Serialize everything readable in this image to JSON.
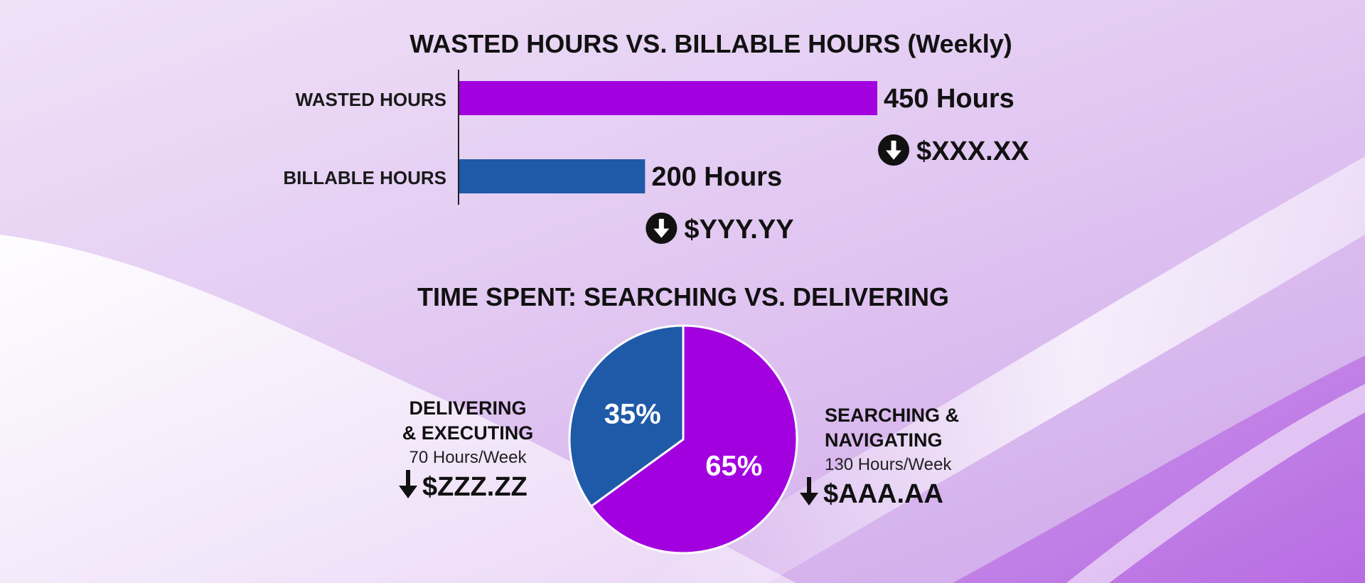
{
  "colors": {
    "wasted": "#a300e0",
    "billable": "#1f5aa8",
    "pie_searching": "#a300e0",
    "pie_delivering": "#1f5aa8",
    "text": "#111111"
  },
  "chart_data": [
    {
      "type": "bar",
      "orientation": "horizontal",
      "title": "WASTED HOURS VS. BILLABLE HOURS (Weekly)",
      "categories": [
        "WASTED HOURS",
        "BILLABLE HOURS"
      ],
      "values": [
        450,
        200
      ],
      "value_labels": [
        "450 Hours",
        "200 Hours"
      ],
      "cost_labels": [
        "$XXX.XX",
        "$YYY.YY"
      ],
      "cost_icon": "arrow-down-circle-icon",
      "xlim": [
        0,
        550
      ],
      "grid": false,
      "legend": "none"
    },
    {
      "type": "pie",
      "title": "TIME SPENT: SEARCHING VS. DELIVERING",
      "slices": [
        {
          "id": "searching",
          "value": 65,
          "label": "65%",
          "title_lines": [
            "SEARCHING &",
            "NAVIGATING"
          ],
          "subtitle": "130 Hours/Week",
          "cost": "$AAA.AA"
        },
        {
          "id": "delivering",
          "value": 35,
          "label": "35%",
          "title_lines": [
            "DELIVERING",
            "& EXECUTING"
          ],
          "subtitle": "70 Hours/Week",
          "cost": "$ZZZ.ZZ"
        }
      ],
      "cost_icon": "arrow-down-icon",
      "legend": "sides"
    }
  ]
}
